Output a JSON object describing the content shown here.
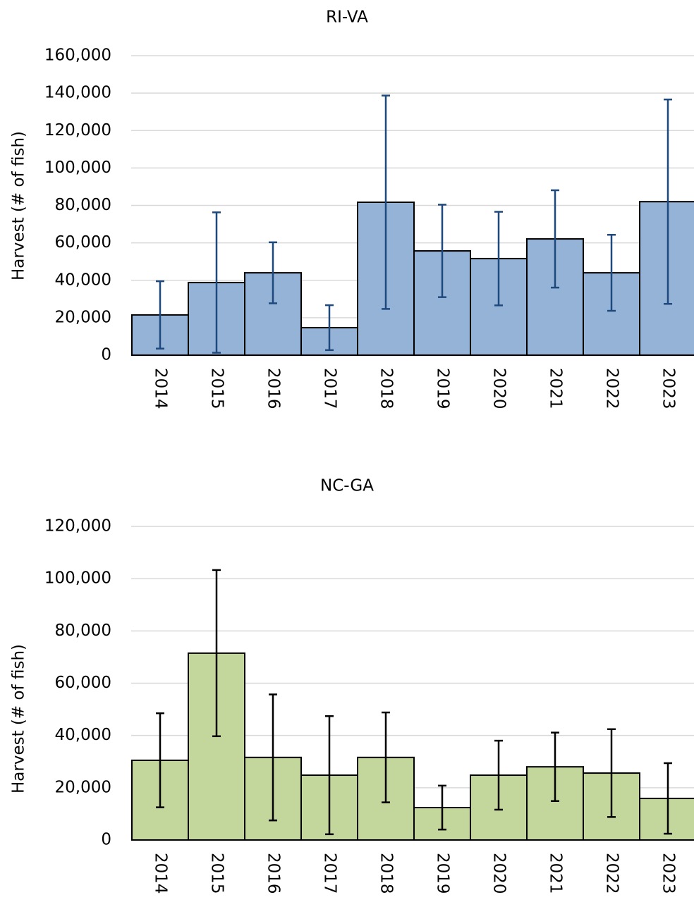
{
  "chart_data": [
    {
      "type": "bar",
      "title": "RI-VA",
      "y_label": "Harvest (# of fish)",
      "categories": [
        "2014",
        "2015",
        "2016",
        "2017",
        "2018",
        "2019",
        "2020",
        "2021",
        "2022",
        "2023"
      ],
      "values": [
        21500,
        38800,
        44000,
        14700,
        81700,
        55700,
        51600,
        62100,
        44000,
        82000
      ],
      "errors": [
        18000,
        37500,
        16300,
        12000,
        57000,
        24700,
        25000,
        26000,
        20300,
        54600
      ],
      "color": "#95b3d7",
      "error_color": "#1f497d",
      "ylim": [
        0,
        160000
      ],
      "yticks": [
        0,
        {
          "value": 20000,
          "label": "20,000"
        },
        {
          "value": 40000,
          "label": "40,000"
        },
        {
          "value": 60000,
          "label": "60,000"
        },
        {
          "value": 80000,
          "label": "80,000"
        },
        {
          "value": 100000,
          "label": "100,000"
        },
        {
          "value": 120000,
          "label": "120,000"
        },
        {
          "value": 140000,
          "label": "140,000"
        },
        {
          "value": 160000,
          "label": "160,000"
        }
      ],
      "grid": true
    },
    {
      "type": "bar",
      "title": "NC-GA",
      "y_label": "Harvest (# of fish)",
      "categories": [
        "2014",
        "2015",
        "2016",
        "2017",
        "2018",
        "2019",
        "2020",
        "2021",
        "2022",
        "2023"
      ],
      "values": [
        30500,
        71500,
        31600,
        24800,
        31600,
        12400,
        24800,
        28000,
        25600,
        15900
      ],
      "errors": [
        18000,
        31800,
        24100,
        22600,
        17200,
        8400,
        13200,
        13100,
        16800,
        13500
      ],
      "color": "#c3d69b",
      "error_color": "#000000",
      "ylim": [
        0,
        120000
      ],
      "yticks": [
        0,
        {
          "value": 20000,
          "label": "20,000"
        },
        {
          "value": 40000,
          "label": "40,000"
        },
        {
          "value": 60000,
          "label": "60,000"
        },
        {
          "value": 80000,
          "label": "80,000"
        },
        {
          "value": 100000,
          "label": "100,000"
        },
        {
          "value": 120000,
          "label": "120,000"
        }
      ],
      "grid": true
    }
  ]
}
